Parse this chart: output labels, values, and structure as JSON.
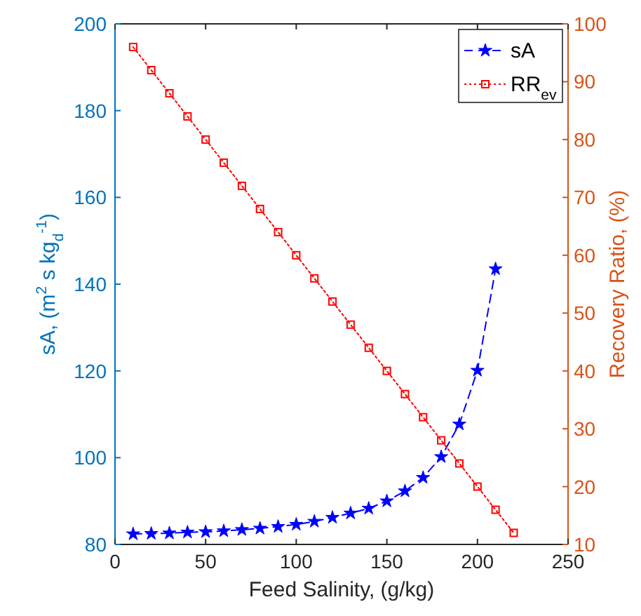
{
  "chart_data": {
    "type": "line",
    "xlabel": "Feed Salinity, (g/kg)",
    "ylabel": "sA, (m$^{2}$ s kg$_{d}$$^{-1}$)",
    "y2label": "Recovery Ratio, (%)",
    "xlim": [
      0,
      250
    ],
    "xticks": [
      0,
      50,
      100,
      150,
      200,
      250
    ],
    "ylim": [
      80,
      200
    ],
    "yticks": [
      80,
      100,
      120,
      140,
      160,
      180,
      200
    ],
    "y2lim": [
      10,
      100
    ],
    "y2ticks": [
      10,
      20,
      30,
      40,
      50,
      60,
      70,
      80,
      90,
      100
    ],
    "legend": "top right",
    "grid": false,
    "series": [
      {
        "name": "sA",
        "color": "#0000ff",
        "marker": "star",
        "line_style": "dashed",
        "x": [
          10,
          20,
          30,
          40,
          50,
          60,
          70,
          80,
          90,
          100,
          110,
          120,
          130,
          140,
          150,
          160,
          170,
          180,
          190,
          200,
          210
        ],
        "values": [
          82.4,
          82.5,
          82.6,
          82.8,
          82.9,
          83.1,
          83.4,
          83.7,
          84.1,
          84.6,
          85.3,
          86.2,
          87.2,
          88.3,
          90.0,
          92.3,
          95.4,
          100.2,
          107.7,
          120.1,
          143.5
        ]
      },
      {
        "name": "RR$_{ev}$",
        "color": "#ff0000",
        "marker": "square",
        "line_style": "dotted",
        "axis": "y2",
        "x": [
          10,
          20,
          30,
          40,
          50,
          60,
          70,
          80,
          90,
          100,
          110,
          120,
          130,
          140,
          150,
          160,
          170,
          180,
          190,
          200,
          210,
          220
        ],
        "values": [
          96,
          92,
          88,
          84,
          80,
          76,
          72,
          68,
          64,
          60,
          56,
          52,
          48,
          44,
          40,
          36,
          32,
          28,
          24,
          20,
          16,
          12
        ]
      }
    ]
  }
}
